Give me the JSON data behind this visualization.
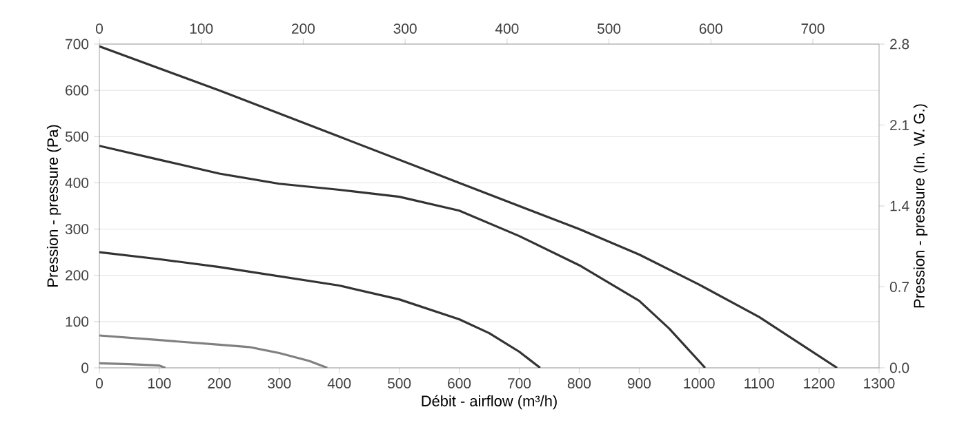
{
  "chart_data": {
    "type": "line",
    "xlabel": "Débit - airflow (m³/h)",
    "ylabel": "Pression - pressure (Pa)",
    "y2label": "Pression - pressure (In. W. G.)",
    "xlim": [
      0,
      1300
    ],
    "xticks": [
      0,
      100,
      200,
      300,
      400,
      500,
      600,
      700,
      800,
      900,
      1000,
      1100,
      1200,
      1300
    ],
    "ylim": [
      0,
      700
    ],
    "yticks": [
      0,
      100,
      200,
      300,
      400,
      500,
      600,
      700
    ],
    "x2lim": [
      0,
      765
    ],
    "x2ticks": [
      0,
      100,
      200,
      300,
      400,
      500,
      600,
      700
    ],
    "y2lim": [
      0,
      2.8
    ],
    "y2ticks": [
      {
        "value": 0,
        "label": "0.0"
      },
      {
        "value": 0.7,
        "label": "0.7"
      },
      {
        "value": 1.4,
        "label": "1.4"
      },
      {
        "value": 2.1,
        "label": "2.1"
      },
      {
        "value": 2.8,
        "label": "2.8"
      }
    ],
    "grid": "y",
    "marker": "none",
    "line_style": "solid",
    "series": [
      {
        "color": "#333333",
        "x": [
          0,
          200,
          400,
          600,
          700,
          800,
          900,
          1000,
          1100,
          1230
        ],
        "values": [
          695,
          600,
          500,
          400,
          350,
          300,
          245,
          180,
          110,
          0
        ]
      },
      {
        "color": "#333333",
        "x": [
          0,
          100,
          200,
          300,
          400,
          500,
          600,
          700,
          800,
          900,
          950,
          1010
        ],
        "values": [
          480,
          450,
          420,
          398,
          385,
          370,
          340,
          285,
          222,
          145,
          85,
          0
        ]
      },
      {
        "color": "#333333",
        "x": [
          0,
          100,
          200,
          300,
          400,
          500,
          600,
          650,
          700,
          735
        ],
        "values": [
          250,
          235,
          218,
          198,
          178,
          148,
          105,
          75,
          35,
          0
        ]
      },
      {
        "color": "#808080",
        "x": [
          0,
          100,
          200,
          250,
          300,
          350,
          380
        ],
        "values": [
          70,
          60,
          50,
          45,
          32,
          15,
          0
        ]
      },
      {
        "color": "#808080",
        "x": [
          0,
          50,
          100,
          110
        ],
        "values": [
          10,
          8,
          5,
          0
        ]
      }
    ]
  }
}
